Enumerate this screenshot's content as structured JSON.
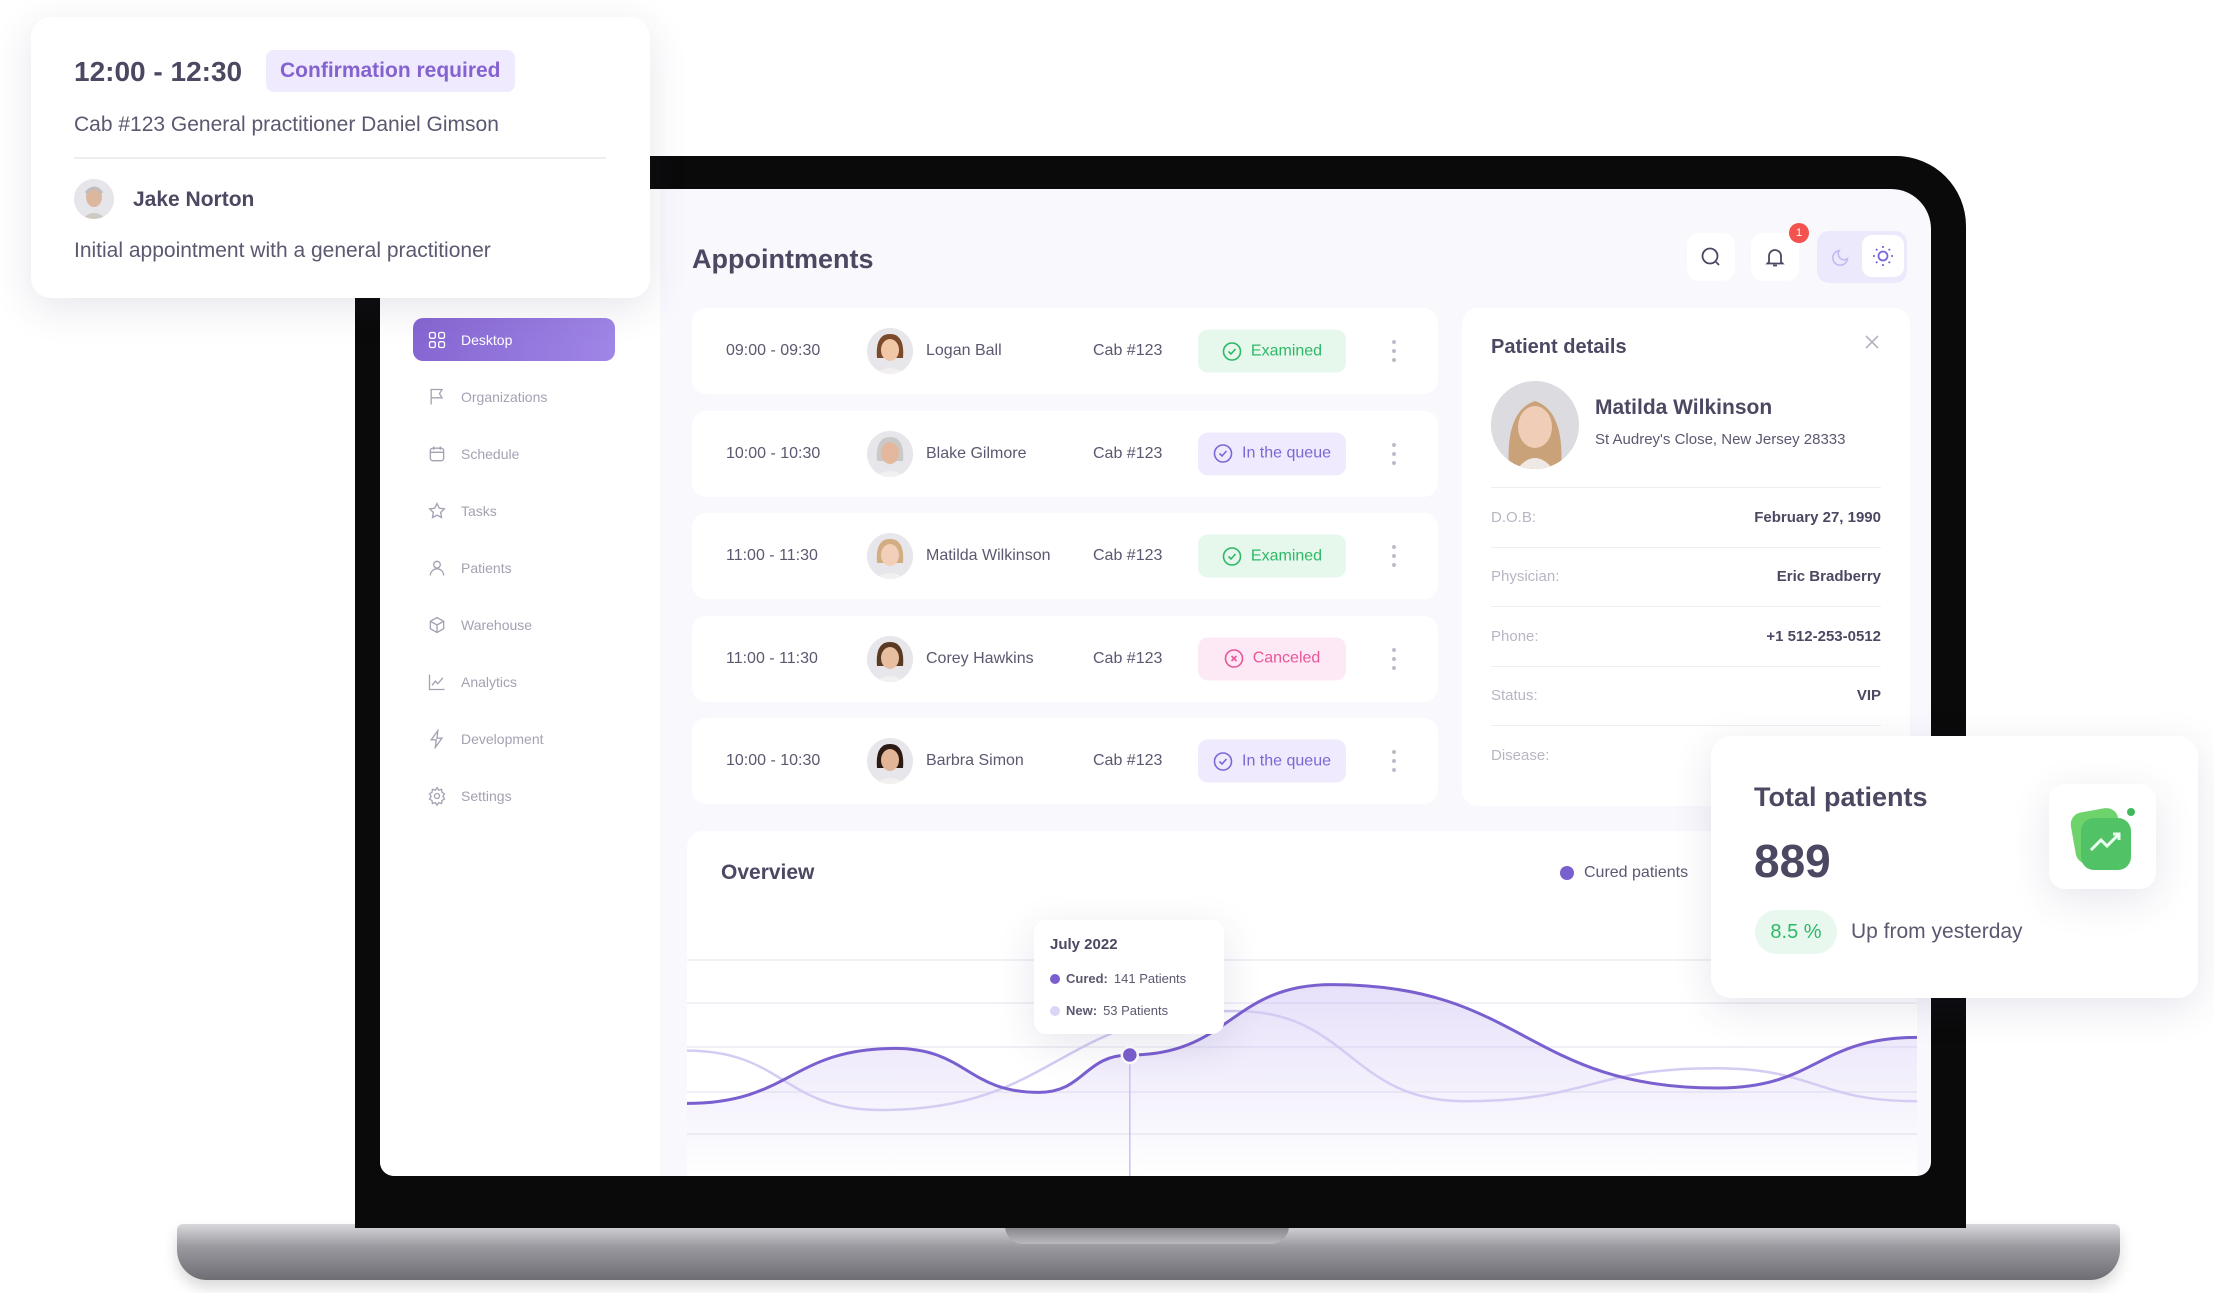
{
  "appointment_popup": {
    "time": "12:00 - 12:30",
    "badge": "Confirmation required",
    "details": "Cab #123  General practitioner Daniel Gimson",
    "patient": "Jake Norton",
    "description": "Initial appointment with a general practitioner"
  },
  "sidebar": {
    "items": [
      {
        "label": "Desktop",
        "icon": "grid-icon",
        "active": true
      },
      {
        "label": "Organizations",
        "icon": "flag-icon"
      },
      {
        "label": "Schedule",
        "icon": "calendar-icon"
      },
      {
        "label": "Tasks",
        "icon": "star-icon"
      },
      {
        "label": "Patients",
        "icon": "user-icon"
      },
      {
        "label": "Warehouse",
        "icon": "box-icon"
      },
      {
        "label": "Analytics",
        "icon": "chart-icon"
      },
      {
        "label": "Development",
        "icon": "bolt-icon"
      },
      {
        "label": "Settings",
        "icon": "gear-icon"
      }
    ]
  },
  "header": {
    "title": "Appointments",
    "notification_count": "1"
  },
  "appointments": [
    {
      "time": "09:00 - 09:30",
      "name": "Logan Ball",
      "cab": "Cab #123",
      "status": "Examined",
      "kind": "examined"
    },
    {
      "time": "10:00 - 10:30",
      "name": "Blake Gilmore",
      "cab": "Cab #123",
      "status": "In the queue",
      "kind": "queue"
    },
    {
      "time": "11:00 - 11:30",
      "name": "Matilda Wilkinson",
      "cab": "Cab #123",
      "status": "Examined",
      "kind": "examined"
    },
    {
      "time": "11:00 - 11:30",
      "name": "Corey Hawkins",
      "cab": "Cab #123",
      "status": "Canceled",
      "kind": "canceled"
    },
    {
      "time": "10:00 - 10:30",
      "name": "Barbra Simon",
      "cab": "Cab #123",
      "status": "In the queue",
      "kind": "queue"
    }
  ],
  "patient_details": {
    "title": "Patient details",
    "name": "Matilda Wilkinson",
    "address": "St Audrey's Close, New Jersey 28333",
    "fields": [
      {
        "label": "D.O.B:",
        "value": "February 27, 1990"
      },
      {
        "label": "Physician:",
        "value": "Eric Bradberry"
      },
      {
        "label": "Phone:",
        "value": "+1 512-253-0512"
      },
      {
        "label": "Status:",
        "value": "VIP"
      },
      {
        "label": "Disease:",
        "value": ""
      }
    ]
  },
  "overview": {
    "title": "Overview",
    "legend": "Cured patients"
  },
  "total_patients": {
    "title": "Total patients",
    "value": "889",
    "change": "8.5 %",
    "change_label": "Up from yesterday"
  },
  "colors": {
    "accent": "#8666d2",
    "green": "#2fb768",
    "pink": "#e8559a"
  },
  "chart_data": {
    "type": "area",
    "title": "",
    "xlabel": "",
    "ylabel": "",
    "legend": "top-right",
    "grid": true,
    "xlim": [
      0,
      100
    ],
    "ylim": [
      0,
      100
    ],
    "series": [
      {
        "name": "Cured patients",
        "color": "#7a5fcf",
        "x": [
          0,
          16.9,
          28.6,
          36,
          52.4,
          83.8,
          100
        ],
        "values": [
          33,
          58,
          38,
          55,
          87,
          40,
          63
        ]
      },
      {
        "color": "#d4ccf3",
        "x": [
          0,
          15.7,
          44.6,
          63.2,
          83.6,
          100
        ],
        "values": [
          57,
          30,
          75,
          34,
          49,
          34
        ]
      }
    ],
    "tooltip": {
      "title": "July 2022",
      "cured_label": "Cured:",
      "cured_value": "141 Patients",
      "new_label": "New:",
      "new_value": "53 Patients",
      "x": 36
    }
  }
}
